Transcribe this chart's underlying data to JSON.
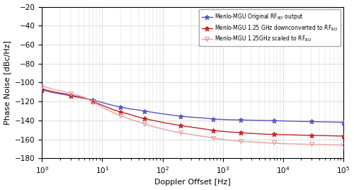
{
  "title": "",
  "xlabel": "Doppler Offset [Hz]",
  "ylabel": "Phase Noise [dBc/Hz]",
  "xlim": [
    1,
    100000
  ],
  "ylim": [
    -180,
    -20
  ],
  "yticks": [
    -180,
    -160,
    -140,
    -120,
    -100,
    -80,
    -60,
    -40,
    -20
  ],
  "background_color": "#ffffff",
  "grid_color": "#d0d0d0",
  "series": [
    {
      "name": "blue",
      "label": "Menlo-MGU Original RF$_{RO}$ output",
      "color": "#5555cc",
      "marker": "*",
      "marker_size": 5,
      "linewidth": 1.0,
      "x_dense": [
        1.0,
        1.2,
        1.5,
        2.0,
        2.5,
        3.0,
        4.0,
        5.0,
        6.0,
        7.0,
        8.0,
        10.0,
        12.0,
        15.0,
        20.0,
        25.0,
        30.0,
        40.0,
        50.0,
        70.0,
        100.0,
        150.0,
        200.0,
        300.0,
        500.0,
        700.0,
        1000.0,
        2000.0,
        5000.0,
        10000.0,
        20000.0,
        50000.0,
        100000.0
      ],
      "y_dense": [
        -108,
        -109,
        -110.5,
        -112,
        -113,
        -114,
        -115.5,
        -116.5,
        -117.5,
        -118.5,
        -119.5,
        -121,
        -122.5,
        -124,
        -126,
        -127,
        -128,
        -129,
        -130,
        -131.5,
        -133,
        -134.5,
        -135.5,
        -136.5,
        -137.5,
        -138.5,
        -139,
        -139.5,
        -140,
        -140.5,
        -141,
        -141.5,
        -142
      ],
      "x_markers": [
        1.0,
        3.0,
        7.0,
        20.0,
        50.0,
        200.0,
        700.0,
        2000.0,
        7000.0,
        30000.0,
        100000.0
      ],
      "y_markers": [
        -108,
        -114,
        -118.5,
        -126,
        -130,
        -135.5,
        -138.5,
        -139.5,
        -140,
        -141,
        -142
      ]
    },
    {
      "name": "red",
      "label": "Menlo-MGU 1.25 GHz downconverted to RF$_{RO}$",
      "color": "#cc2222",
      "marker": "*",
      "marker_size": 5,
      "linewidth": 1.0,
      "x_dense": [
        1.0,
        1.2,
        1.5,
        2.0,
        2.5,
        3.0,
        4.0,
        5.0,
        6.0,
        7.0,
        8.0,
        10.0,
        12.0,
        15.0,
        20.0,
        25.0,
        30.0,
        40.0,
        50.0,
        70.0,
        100.0,
        150.0,
        200.0,
        300.0,
        500.0,
        700.0,
        1000.0,
        2000.0,
        5000.0,
        10000.0,
        20000.0,
        50000.0,
        100000.0
      ],
      "y_dense": [
        -107,
        -108,
        -109.5,
        -111,
        -112,
        -113.5,
        -115,
        -116.5,
        -118,
        -120,
        -121.5,
        -124,
        -126,
        -128.5,
        -131,
        -132.5,
        -134,
        -136.5,
        -138,
        -140,
        -142,
        -144,
        -145.5,
        -147,
        -149,
        -150.5,
        -151.5,
        -153,
        -154.5,
        -155,
        -155.5,
        -156,
        -156.5
      ],
      "x_markers": [
        1.0,
        3.0,
        7.0,
        20.0,
        50.0,
        200.0,
        700.0,
        2000.0,
        7000.0,
        30000.0,
        100000.0
      ],
      "y_markers": [
        -107,
        -113.5,
        -120,
        -131,
        -138,
        -145.5,
        -150.5,
        -153,
        -154.5,
        -155.5,
        -156.5
      ]
    },
    {
      "name": "pink",
      "label": "Menlo-MGU 1.25GHz scaled to RF$_{RO}$",
      "color": "#e8a0a0",
      "marker": "v",
      "marker_size": 5,
      "linewidth": 1.0,
      "x_dense": [
        1.0,
        1.2,
        1.5,
        2.0,
        2.5,
        3.0,
        4.0,
        5.0,
        6.0,
        7.0,
        8.0,
        10.0,
        12.0,
        15.0,
        20.0,
        25.0,
        30.0,
        40.0,
        50.0,
        70.0,
        100.0,
        150.0,
        200.0,
        300.0,
        500.0,
        700.0,
        1000.0,
        2000.0,
        5000.0,
        10000.0,
        20000.0,
        50000.0,
        100000.0
      ],
      "y_dense": [
        -104,
        -105,
        -107,
        -108.5,
        -110,
        -111.5,
        -113.5,
        -115.5,
        -118,
        -120.5,
        -122.5,
        -126,
        -128.5,
        -131.5,
        -135,
        -137,
        -139,
        -141.5,
        -143.5,
        -146.5,
        -149,
        -151.5,
        -153,
        -155,
        -157,
        -158.5,
        -160,
        -162,
        -163.5,
        -164.5,
        -165,
        -165.5,
        -166
      ],
      "x_markers": [
        1.0,
        3.0,
        7.0,
        20.0,
        50.0,
        200.0,
        700.0,
        2000.0,
        7000.0,
        30000.0,
        100000.0
      ],
      "y_markers": [
        -104,
        -111.5,
        -120.5,
        -135,
        -143.5,
        -153,
        -158.5,
        -162,
        -163.5,
        -165,
        -166
      ]
    }
  ]
}
